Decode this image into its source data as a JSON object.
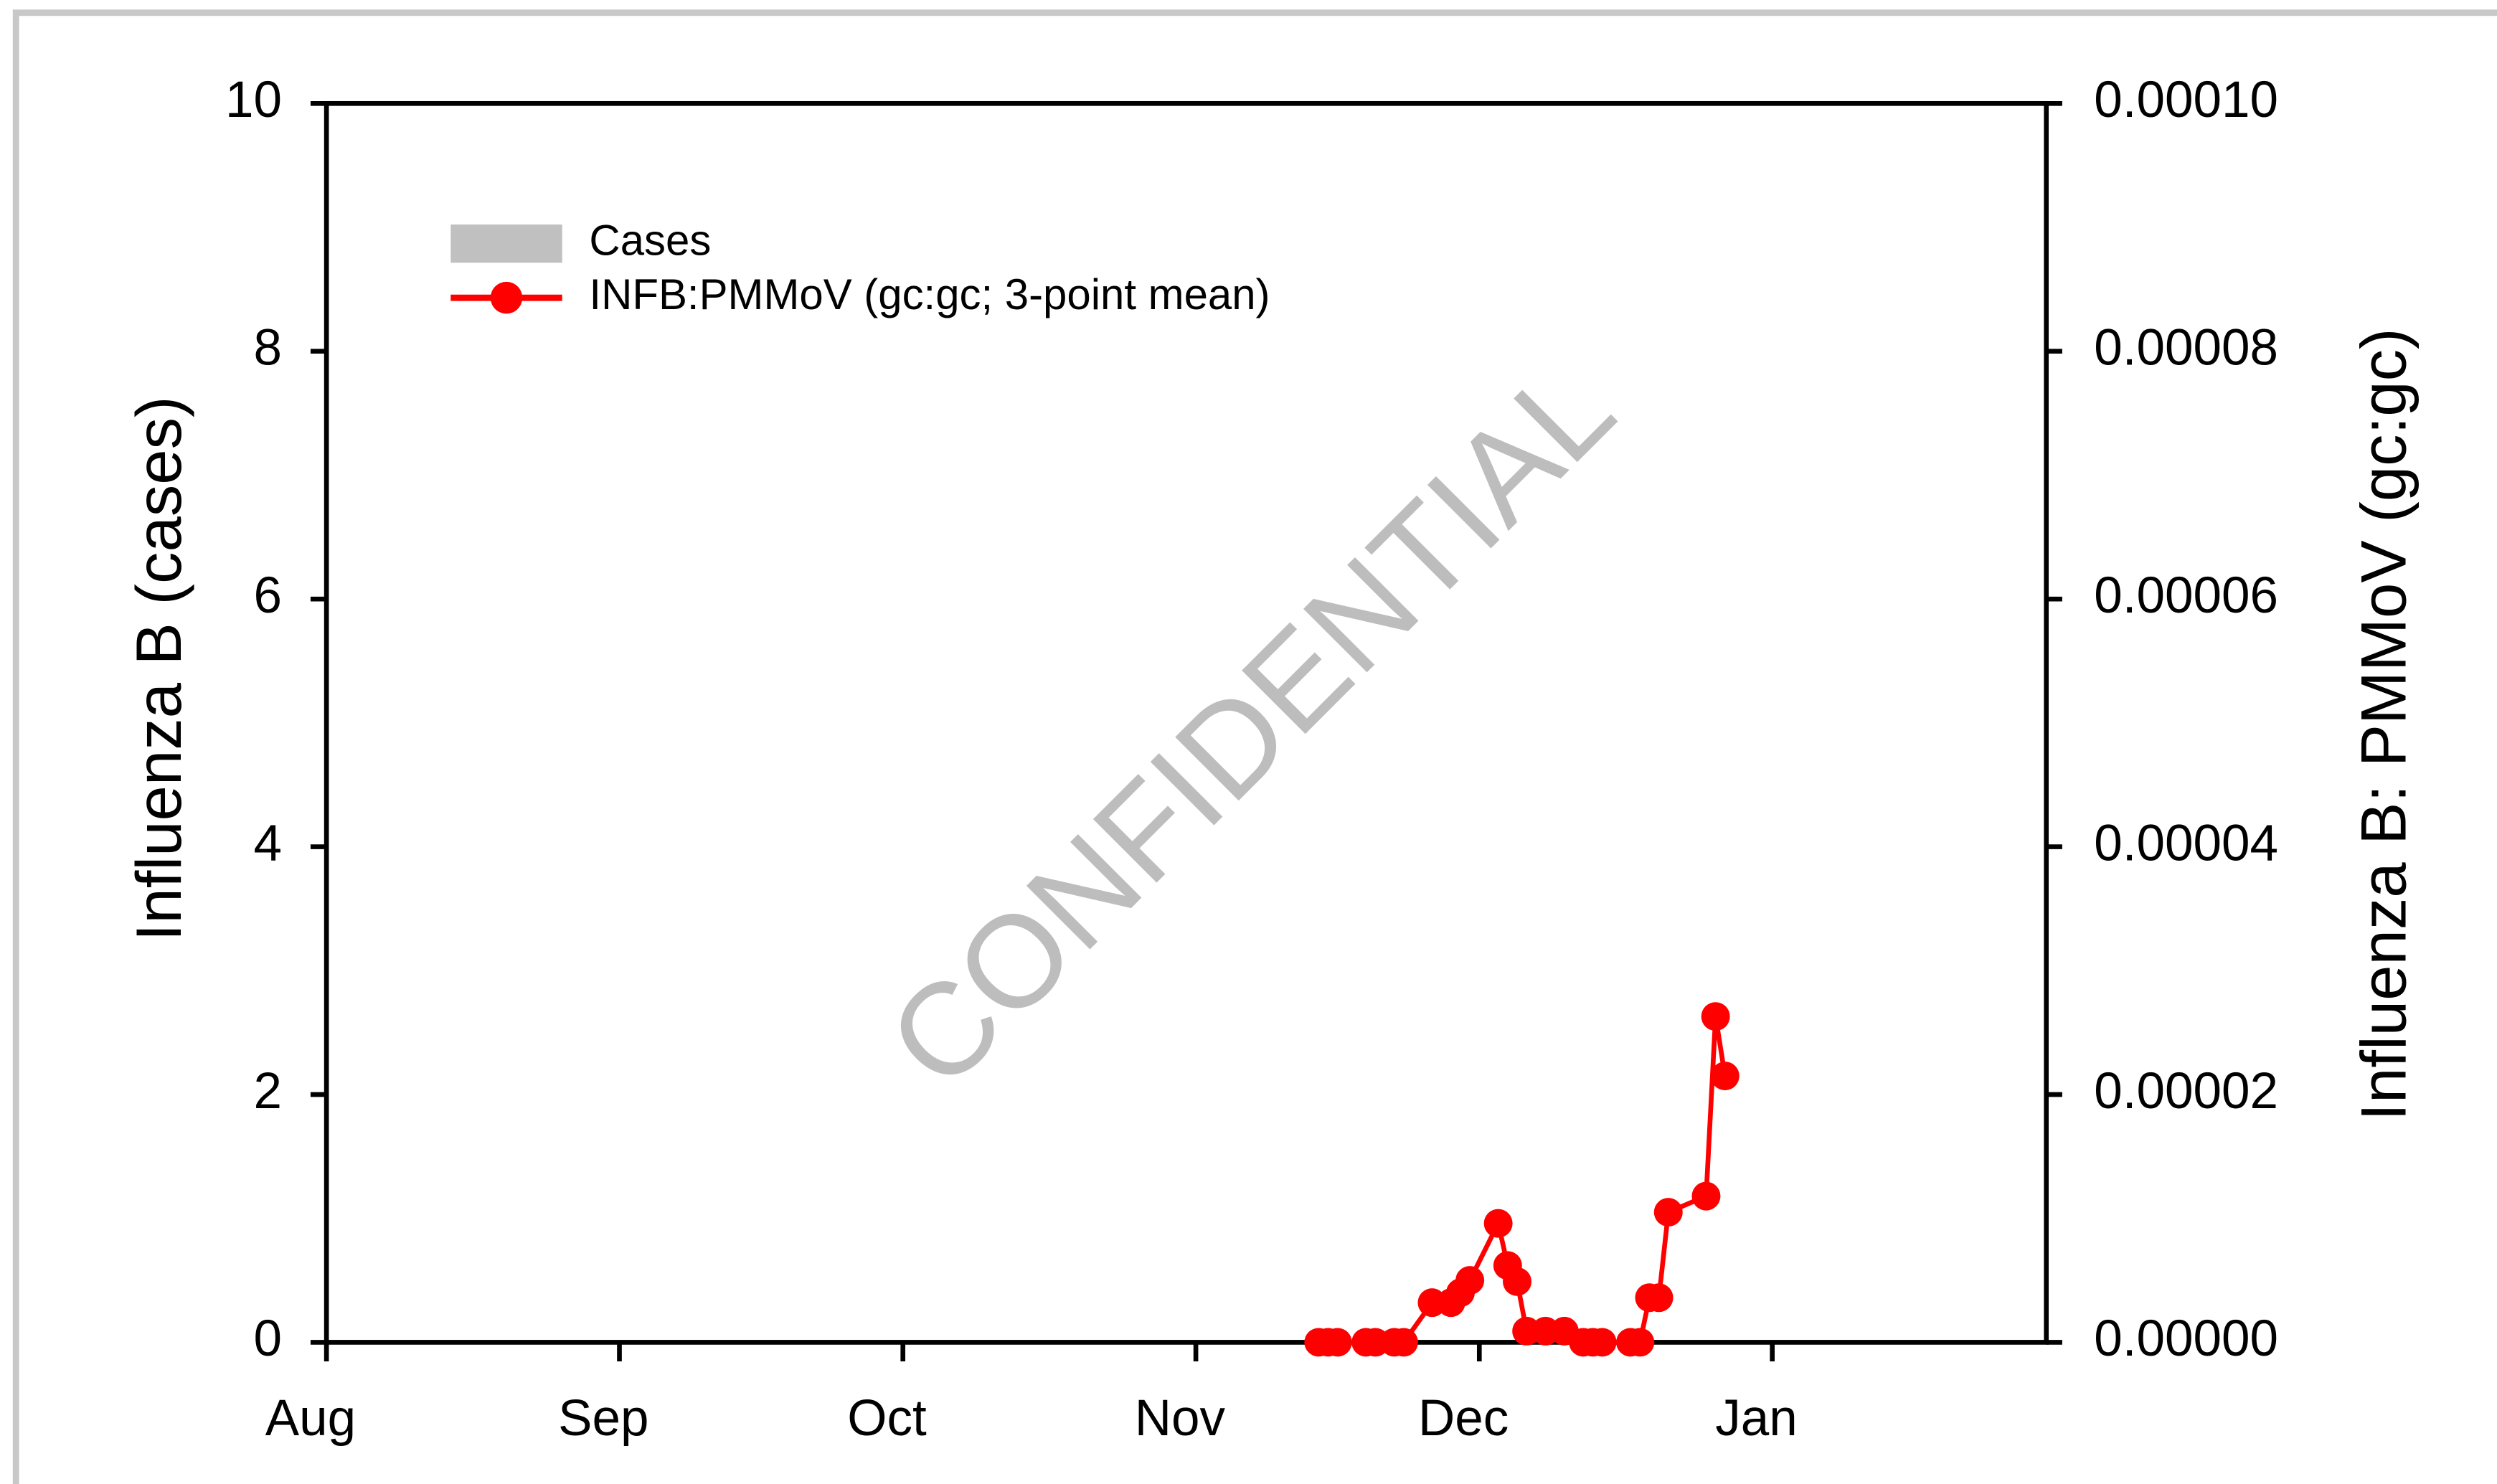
{
  "chart_data": {
    "type": "line",
    "y_label": "Influenza B (cases)",
    "y2_label": "Influenza B: PMMoV (gc:gc)",
    "annotation": "CONFIDENTIAL",
    "x": [
      105,
      106,
      107,
      110,
      111,
      113,
      114,
      117,
      119,
      120,
      121,
      124,
      125,
      126,
      127,
      129,
      131,
      133,
      134,
      135,
      138,
      139,
      140,
      141,
      142,
      146,
      147,
      148
    ],
    "xlim": [
      0,
      182
    ],
    "xticks": [
      {
        "value": 0,
        "label": "Aug"
      },
      {
        "value": 31,
        "label": "Sep"
      },
      {
        "value": 61,
        "label": "Oct"
      },
      {
        "value": 92,
        "label": "Nov"
      },
      {
        "value": 122,
        "label": "Dec"
      },
      {
        "value": 153,
        "label": "Jan"
      }
    ],
    "ylim": [
      0,
      10
    ],
    "yticks": [
      0,
      2,
      4,
      6,
      8,
      10
    ],
    "y2lim": [
      0,
      0.0001
    ],
    "y2ticks": [
      {
        "value": 0,
        "label": "0.00000"
      },
      {
        "value": 2e-05,
        "label": "0.00002"
      },
      {
        "value": 4e-05,
        "label": "0.00004"
      },
      {
        "value": 6e-05,
        "label": "0.00006"
      },
      {
        "value": 8e-05,
        "label": "0.00008"
      },
      {
        "value": 0.0001,
        "label": "0.00010"
      }
    ],
    "series": [
      {
        "name": "Cases",
        "color": "#c0c0c0",
        "type": "bar",
        "values": [
          null,
          null,
          null,
          null,
          null,
          null,
          null,
          null,
          null,
          null,
          null,
          null,
          null,
          null,
          null,
          null,
          null,
          null,
          null,
          null,
          null,
          null,
          null,
          null,
          null,
          null,
          null,
          null
        ]
      },
      {
        "name": "INFB:PMMoV (gc:gc; 3-point mean)",
        "color": "#ff0000",
        "type": "line",
        "axis": "y2",
        "values": [
          0,
          0,
          0,
          0,
          0,
          0,
          0,
          3.2e-06,
          3.2e-06,
          4e-06,
          5e-06,
          9.6e-06,
          6.2e-06,
          4.9e-06,
          9e-07,
          9e-07,
          9e-07,
          0,
          0,
          0,
          0,
          0,
          3.6e-06,
          3.6e-06,
          1.05e-05,
          1.18e-05,
          2.63e-05,
          2.15e-05
        ]
      }
    ]
  }
}
